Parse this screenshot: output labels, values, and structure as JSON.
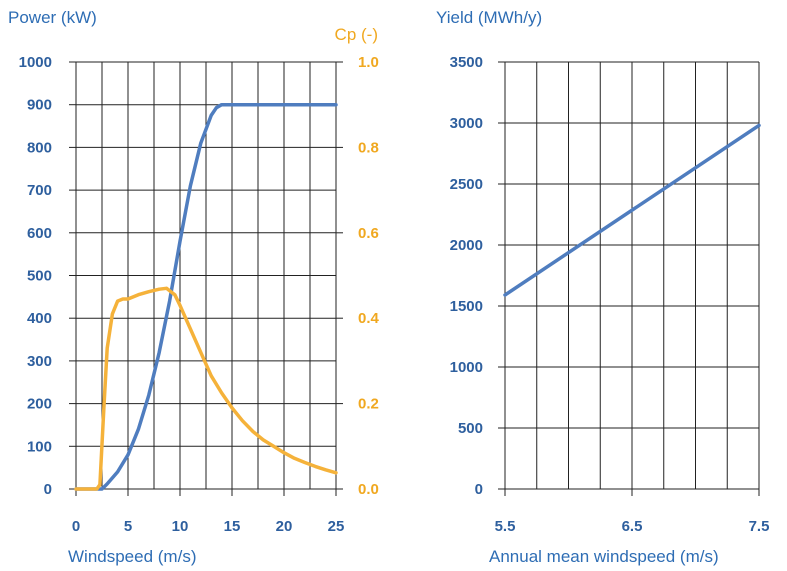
{
  "colors": {
    "blue": "#4f7dbf",
    "orange": "#f5b23a",
    "grid": "#222222",
    "tick_blue": "#2e5f9e",
    "tick_orange": "#f0a820",
    "title_blue": "#2e6db4"
  },
  "chart_data": [
    {
      "type": "line",
      "ylabel": "Power (kW)",
      "y2label": "Cp (-)",
      "xlabel": "Windspeed (m/s)",
      "xlim": [
        0,
        25
      ],
      "ylim": [
        0,
        1000
      ],
      "y2lim": [
        0,
        1.0
      ],
      "grid": true,
      "x_ticks": [
        "0",
        "5",
        "10",
        "15",
        "20",
        "25"
      ],
      "y_ticks": [
        "0",
        "100",
        "200",
        "300",
        "400",
        "500",
        "600",
        "700",
        "800",
        "900",
        "1000"
      ],
      "y2_ticks": [
        "0.0",
        "0.2",
        "0.4",
        "0.6",
        "0.8",
        "1.0"
      ],
      "series": [
        {
          "axis": "left",
          "color": "#4f7dbf",
          "x": [
            0,
            2,
            2.5,
            3,
            4,
            5,
            6,
            7,
            8,
            9,
            10,
            11,
            12,
            13,
            13.5,
            14,
            14.5,
            15,
            20,
            25
          ],
          "y": [
            0,
            0,
            0,
            12,
            40,
            80,
            140,
            220,
            320,
            440,
            580,
            710,
            810,
            875,
            893,
            900,
            900,
            900,
            900,
            900
          ]
        },
        {
          "axis": "right",
          "color": "#f5b23a",
          "x": [
            0,
            2,
            2.3,
            2.7,
            3,
            3.5,
            4,
            4.5,
            5,
            6,
            7,
            8,
            8.7,
            9.5,
            10,
            11,
            12,
            13,
            14,
            15,
            16,
            17,
            18,
            19,
            20,
            21,
            22,
            23,
            24,
            25
          ],
          "y": [
            0,
            0,
            0.01,
            0.2,
            0.33,
            0.41,
            0.44,
            0.445,
            0.445,
            0.455,
            0.462,
            0.468,
            0.47,
            0.455,
            0.43,
            0.375,
            0.32,
            0.265,
            0.225,
            0.19,
            0.16,
            0.135,
            0.115,
            0.1,
            0.085,
            0.072,
            0.062,
            0.053,
            0.045,
            0.038
          ]
        }
      ]
    },
    {
      "type": "line",
      "ylabel": "Yield (MWh/y)",
      "xlabel": "Annual mean windspeed (m/s)",
      "xlim": [
        5.5,
        7.5
      ],
      "ylim": [
        0,
        3500
      ],
      "grid": true,
      "x_ticks": [
        "5.5",
        "6.5",
        "7.5"
      ],
      "y_ticks": [
        "0",
        "500",
        "1000",
        "1500",
        "2000",
        "2500",
        "3000",
        "3500"
      ],
      "series": [
        {
          "axis": "left",
          "color": "#4f7dbf",
          "x": [
            5.5,
            7.5
          ],
          "y": [
            1590,
            2980
          ]
        }
      ]
    }
  ]
}
